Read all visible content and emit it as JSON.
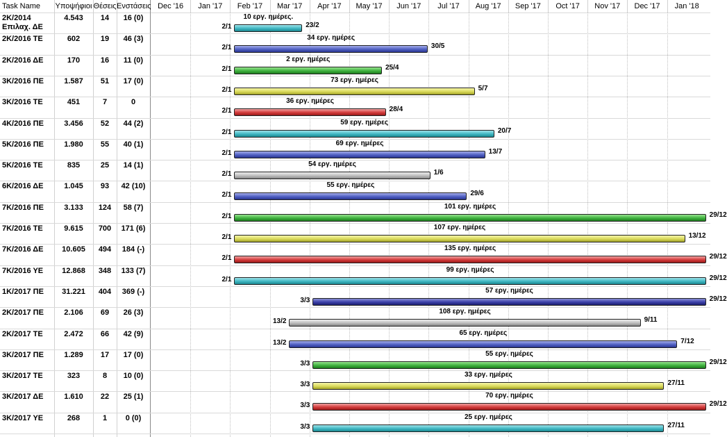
{
  "chart_data": {
    "type": "gantt",
    "table_headers": [
      "Task Name",
      "Υποψήφιοι",
      "Θέσεις",
      "Ενστάσεις"
    ],
    "timeline_labels": [
      "Dec '16",
      "Jan '17",
      "Feb '17",
      "Mar '17",
      "Apr '17",
      "May '17",
      "Jun '17",
      "Jul '17",
      "Aug '17",
      "Sep '17",
      "Oct '17",
      "Nov '17",
      "Dec '17",
      "Jan '18"
    ],
    "tasks": [
      {
        "name": "2Κ/2014",
        "name2": "Επιλαχ. ΔΕ",
        "candidates": "4.543",
        "positions": "14",
        "objections": "16  (0)",
        "start": "2/1",
        "end": "23/2",
        "duration": "10 εργ. ημέρες.",
        "s": 33,
        "e": 85,
        "color": "teal"
      },
      {
        "name": "2Κ/2016 ΤΕ",
        "candidates": "602",
        "positions": "19",
        "objections": "46  (3)",
        "start": "2/1",
        "end": "30/5",
        "duration": "34 εργ. ημέρες",
        "s": 33,
        "e": 181,
        "color": "blue"
      },
      {
        "name": "2Κ/2016 ΔΕ",
        "candidates": "170",
        "positions": "16",
        "objections": "11  (0)",
        "start": "2/1",
        "end": "25/4",
        "duration": "2 εργ. ημέρες",
        "s": 33,
        "e": 146,
        "color": "green"
      },
      {
        "name": "3Κ/2016 ΠΕ",
        "candidates": "1.587",
        "positions": "51",
        "objections": "17 (0)",
        "start": "2/1",
        "end": "5/7",
        "duration": "73 εργ. ημέρες",
        "s": 33,
        "e": 217,
        "color": "yellow"
      },
      {
        "name": "3Κ/2016 ΤΕ",
        "candidates": "451",
        "positions": "7",
        "objections": "0",
        "start": "2/1",
        "end": "28/4",
        "duration": "36 εργ. ημέρες",
        "s": 33,
        "e": 149,
        "color": "red"
      },
      {
        "name": "4Κ/2016 ΠΕ",
        "candidates": "3.456",
        "positions": "52",
        "objections": "44 (2)",
        "start": "2/1",
        "end": "20/7",
        "duration": "59 εργ. ημέρες",
        "s": 33,
        "e": 232,
        "color": "teal"
      },
      {
        "name": "5Κ/2016 ΠΕ",
        "candidates": "1.980",
        "positions": "55",
        "objections": "40 (1)",
        "start": "2/1",
        "end": "13/7",
        "duration": "69 εργ. ημέρες",
        "s": 33,
        "e": 225,
        "color": "blue"
      },
      {
        "name": "5Κ/2016 ΤΕ",
        "candidates": "835",
        "positions": "25",
        "objections": "14 (1)",
        "start": "2/1",
        "end": "1/6",
        "duration": "54 εργ. ημέρες",
        "s": 33,
        "e": 183,
        "color": "gray"
      },
      {
        "name": "6Κ/2016 ΔΕ",
        "candidates": "1.045",
        "positions": "93",
        "objections": "42 (10)",
        "start": "2/1",
        "end": "29/6",
        "duration": "55 εργ. ημέρες",
        "s": 33,
        "e": 211,
        "color": "blue"
      },
      {
        "name": "7Κ/2016 ΠΕ",
        "candidates": "3.133",
        "positions": "124",
        "objections": "58 (7)",
        "start": "2/1",
        "end": "29/12",
        "duration": "101 εργ. ημέρες",
        "s": 33,
        "e": 394,
        "color": "green"
      },
      {
        "name": "7Κ/2016 ΤΕ",
        "candidates": "9.615",
        "positions": "700",
        "objections": "171 (6)",
        "start": "2/1",
        "end": "13/12",
        "duration": "107 εργ. ημέρες",
        "s": 33,
        "e": 378,
        "color": "yellow"
      },
      {
        "name": "7Κ/2016 ΔΕ",
        "candidates": "10.605",
        "positions": "494",
        "objections": "184 (-)",
        "start": "2/1",
        "end": "29/12",
        "duration": "135 εργ. ημέρες",
        "s": 33,
        "e": 394,
        "color": "red"
      },
      {
        "name": "7Κ/2016 ΥΕ",
        "candidates": "12.868",
        "positions": "348",
        "objections": "133 (7)",
        "start": "2/1",
        "end": "29/12",
        "duration": "99 εργ. ημέρες",
        "s": 33,
        "e": 394,
        "color": "teal"
      },
      {
        "name": "1Κ/2017 ΠΕ",
        "candidates": "31.221",
        "positions": "404",
        "objections": "369 (-)",
        "start": "3/3",
        "end": "29/12",
        "duration": "57 εργ. ημέρες",
        "s": 93,
        "e": 394,
        "color": "navy"
      },
      {
        "name": "2Κ/2017 ΠΕ",
        "candidates": "2.106",
        "positions": "69",
        "objections": "26 (3)",
        "start": "13/2",
        "end": "9/11",
        "duration": "108 εργ. ημέρες",
        "s": 75,
        "e": 344,
        "color": "gray"
      },
      {
        "name": "2Κ/2017 ΤΕ",
        "candidates": "2.472",
        "positions": "66",
        "objections": "42 (9)",
        "start": "13/2",
        "end": "7/12",
        "duration": "65 εργ. ημέρες",
        "s": 75,
        "e": 372,
        "color": "blue"
      },
      {
        "name": "3Κ/2017 ΠΕ",
        "candidates": "1.289",
        "positions": "17",
        "objections": "17 (0)",
        "start": "3/3",
        "end": "29/12",
        "duration": "55 εργ. ημέρες",
        "s": 93,
        "e": 394,
        "color": "green"
      },
      {
        "name": "3Κ/2017 ΤΕ",
        "candidates": "323",
        "positions": "8",
        "objections": "10 (0)",
        "start": "3/3",
        "end": "27/11",
        "duration": "33 εργ. ημέρες",
        "s": 93,
        "e": 362,
        "color": "yellow"
      },
      {
        "name": "3Κ/2017 ΔΕ",
        "candidates": "1.610",
        "positions": "22",
        "objections": "25 (1)",
        "start": "3/3",
        "end": "29/12",
        "duration": "70 εργ. ημέρες",
        "s": 93,
        "e": 394,
        "color": "red"
      },
      {
        "name": "3Κ/2017 ΥΕ",
        "candidates": "268",
        "positions": "1",
        "objections": "0 (0)",
        "start": "3/3",
        "end": "27/11",
        "duration": "25 εργ. ημέρες",
        "s": 93,
        "e": 362,
        "color": "teal"
      }
    ],
    "palette": {
      "teal": [
        "#9ee3ea",
        "#3fb7c2",
        "#1c8790"
      ],
      "blue": [
        "#a4acea",
        "#5060c3",
        "#2a3590"
      ],
      "navy": [
        "#8a8fd6",
        "#3a3fa8",
        "#1c1f6e"
      ],
      "green": [
        "#97e48f",
        "#3fb13f",
        "#1d7c1d"
      ],
      "yellow": [
        "#f6f6a8",
        "#d9d95a",
        "#a2a228"
      ],
      "red": [
        "#f0a0a0",
        "#d43c3c",
        "#9a1a1a"
      ],
      "gray": [
        "#eeeeee",
        "#bdbdbd",
        "#888888"
      ]
    }
  }
}
